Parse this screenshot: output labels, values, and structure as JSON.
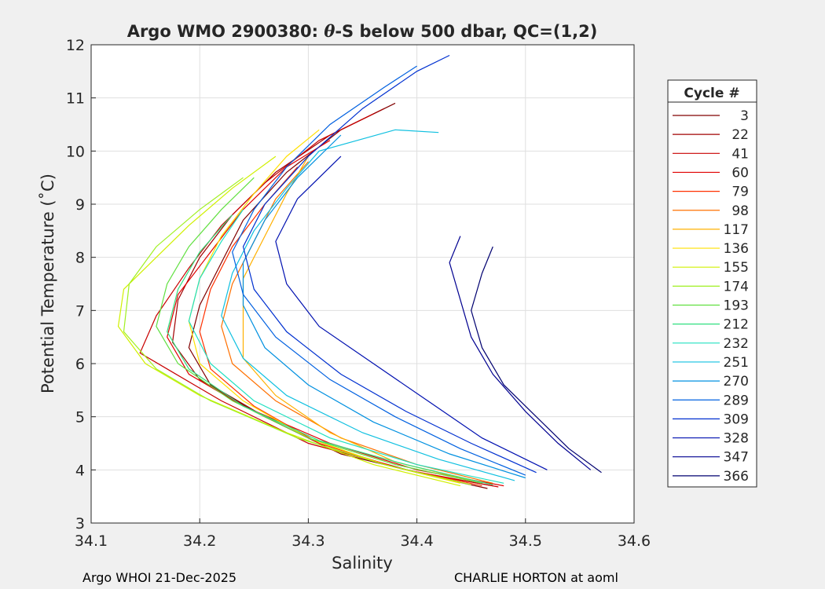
{
  "chart_data": {
    "type": "line",
    "title": "Argo WMO 2900380: θ-S below 500 dbar,  QC=(1,2)",
    "title_parts": {
      "pre": "Argo WMO 2900380: ",
      "theta": "θ",
      "post": "-S below 500 dbar,  QC=(1,2)"
    },
    "xlabel": "Salinity",
    "ylabel": "Potential Temperature (˚C)",
    "xlim": [
      34.1,
      34.6
    ],
    "ylim": [
      3,
      12
    ],
    "xticks": [
      34.1,
      34.2,
      34.3,
      34.4,
      34.5,
      34.6
    ],
    "xtick_labels": [
      "34.1",
      "34.2",
      "34.3",
      "34.4",
      "34.5",
      "34.6"
    ],
    "yticks": [
      3,
      4,
      5,
      6,
      7,
      8,
      9,
      10,
      11,
      12
    ],
    "ytick_labels": [
      "3",
      "4",
      "5",
      "6",
      "7",
      "8",
      "9",
      "10",
      "11",
      "12"
    ],
    "grid": true,
    "legend_title": "Cycle #",
    "legend_position": "right-outside",
    "series": [
      {
        "name": "3",
        "color": "#800000",
        "values": [
          [
            34.465,
            3.65
          ],
          [
            34.41,
            3.9
          ],
          [
            34.33,
            4.3
          ],
          [
            34.26,
            5.0
          ],
          [
            34.21,
            5.6
          ],
          [
            34.19,
            6.3
          ],
          [
            34.2,
            7.1
          ],
          [
            34.22,
            7.9
          ],
          [
            34.24,
            8.7
          ],
          [
            34.28,
            9.6
          ],
          [
            34.33,
            10.4
          ],
          [
            34.38,
            10.9
          ]
        ]
      },
      {
        "name": "22",
        "color": "#a00000",
        "values": [
          [
            34.47,
            3.7
          ],
          [
            34.4,
            3.95
          ],
          [
            34.32,
            4.4
          ],
          [
            34.25,
            5.1
          ],
          [
            34.2,
            5.7
          ],
          [
            34.175,
            6.4
          ],
          [
            34.18,
            7.2
          ],
          [
            34.2,
            8.0
          ],
          [
            34.23,
            8.8
          ],
          [
            34.27,
            9.6
          ],
          [
            34.32,
            10.3
          ],
          [
            34.37,
            10.8
          ]
        ]
      },
      {
        "name": "41",
        "color": "#c80000",
        "values": [
          [
            34.475,
            3.68
          ],
          [
            34.39,
            4.0
          ],
          [
            34.3,
            4.5
          ],
          [
            34.22,
            5.3
          ],
          [
            34.17,
            5.9
          ],
          [
            34.145,
            6.2
          ],
          [
            34.16,
            6.9
          ],
          [
            34.19,
            7.8
          ],
          [
            34.22,
            8.6
          ],
          [
            34.26,
            9.4
          ],
          [
            34.31,
            10.2
          ],
          [
            34.36,
            10.7
          ]
        ]
      },
      {
        "name": "60",
        "color": "#e00000",
        "values": [
          [
            34.48,
            3.7
          ],
          [
            34.4,
            4.0
          ],
          [
            34.32,
            4.5
          ],
          [
            34.24,
            5.2
          ],
          [
            34.19,
            5.8
          ],
          [
            34.17,
            6.5
          ],
          [
            34.18,
            7.3
          ],
          [
            34.21,
            8.1
          ],
          [
            34.24,
            8.9
          ],
          [
            34.28,
            9.7
          ],
          [
            34.32,
            10.2
          ]
        ]
      },
      {
        "name": "79",
        "color": "#ff3000",
        "values": [
          [
            34.46,
            3.7
          ],
          [
            34.38,
            4.05
          ],
          [
            34.31,
            4.5
          ],
          [
            34.25,
            5.2
          ],
          [
            34.21,
            5.9
          ],
          [
            34.2,
            6.6
          ],
          [
            34.21,
            7.4
          ],
          [
            34.23,
            8.2
          ],
          [
            34.26,
            9.0
          ],
          [
            34.29,
            9.7
          ]
        ]
      },
      {
        "name": "98",
        "color": "#ff7000",
        "values": [
          [
            34.47,
            3.75
          ],
          [
            34.4,
            4.1
          ],
          [
            34.33,
            4.6
          ],
          [
            34.27,
            5.3
          ],
          [
            34.23,
            6.0
          ],
          [
            34.22,
            6.7
          ],
          [
            34.23,
            7.5
          ],
          [
            34.25,
            8.3
          ],
          [
            34.27,
            9.1
          ],
          [
            34.3,
            9.8
          ]
        ]
      },
      {
        "name": "117",
        "color": "#ffb000",
        "values": [
          [
            34.45,
            3.8
          ],
          [
            34.38,
            4.15
          ],
          [
            34.32,
            4.7
          ],
          [
            34.27,
            5.4
          ],
          [
            34.24,
            6.1
          ],
          [
            34.24,
            6.8
          ],
          [
            34.24,
            7.6
          ],
          [
            34.26,
            8.4
          ],
          [
            34.28,
            9.2
          ],
          [
            34.3,
            9.9
          ]
        ]
      },
      {
        "name": "136",
        "color": "#ffe000",
        "values": [
          [
            34.44,
            3.75
          ],
          [
            34.37,
            4.1
          ],
          [
            34.3,
            4.6
          ],
          [
            34.24,
            5.3
          ],
          [
            34.2,
            6.0
          ],
          [
            34.19,
            6.8
          ],
          [
            34.2,
            7.6
          ],
          [
            34.22,
            8.4
          ],
          [
            34.25,
            9.2
          ],
          [
            34.28,
            9.9
          ],
          [
            34.31,
            10.4
          ]
        ]
      },
      {
        "name": "155",
        "color": "#d0f000",
        "values": [
          [
            34.44,
            3.7
          ],
          [
            34.36,
            4.1
          ],
          [
            34.28,
            4.7
          ],
          [
            34.2,
            5.4
          ],
          [
            34.15,
            6.0
          ],
          [
            34.125,
            6.7
          ],
          [
            34.13,
            7.4
          ],
          [
            34.16,
            8.0
          ],
          [
            34.19,
            8.6
          ],
          [
            34.23,
            9.3
          ],
          [
            34.27,
            9.9
          ]
        ]
      },
      {
        "name": "174",
        "color": "#a0f020",
        "values": [
          [
            34.45,
            3.72
          ],
          [
            34.37,
            4.1
          ],
          [
            34.29,
            4.6
          ],
          [
            34.21,
            5.3
          ],
          [
            34.16,
            5.9
          ],
          [
            34.13,
            6.6
          ],
          [
            34.135,
            7.5
          ],
          [
            34.16,
            8.2
          ],
          [
            34.2,
            8.9
          ],
          [
            34.24,
            9.5
          ]
        ]
      },
      {
        "name": "193",
        "color": "#60e040",
        "values": [
          [
            34.46,
            3.75
          ],
          [
            34.38,
            4.1
          ],
          [
            34.3,
            4.6
          ],
          [
            34.23,
            5.3
          ],
          [
            34.18,
            6.0
          ],
          [
            34.16,
            6.7
          ],
          [
            34.17,
            7.5
          ],
          [
            34.19,
            8.2
          ],
          [
            34.22,
            8.9
          ],
          [
            34.25,
            9.5
          ]
        ]
      },
      {
        "name": "212",
        "color": "#30e080",
        "values": [
          [
            34.47,
            3.72
          ],
          [
            34.39,
            4.1
          ],
          [
            34.31,
            4.55
          ],
          [
            34.24,
            5.2
          ],
          [
            34.19,
            5.9
          ],
          [
            34.17,
            6.6
          ],
          [
            34.18,
            7.4
          ],
          [
            34.2,
            8.1
          ],
          [
            34.23,
            8.8
          ]
        ]
      },
      {
        "name": "232",
        "color": "#20e0c0",
        "values": [
          [
            34.48,
            3.75
          ],
          [
            34.4,
            4.1
          ],
          [
            34.32,
            4.6
          ],
          [
            34.25,
            5.3
          ],
          [
            34.21,
            6.0
          ],
          [
            34.19,
            6.8
          ],
          [
            34.2,
            7.6
          ],
          [
            34.22,
            8.3
          ],
          [
            34.24,
            8.9
          ]
        ]
      },
      {
        "name": "251",
        "color": "#10c0e0",
        "values": [
          [
            34.49,
            3.8
          ],
          [
            34.42,
            4.2
          ],
          [
            34.35,
            4.7
          ],
          [
            34.28,
            5.4
          ],
          [
            34.24,
            6.1
          ],
          [
            34.22,
            6.9
          ],
          [
            34.23,
            7.7
          ],
          [
            34.25,
            8.5
          ],
          [
            34.28,
            9.3
          ],
          [
            34.31,
            10.0
          ],
          [
            34.38,
            10.4
          ],
          [
            34.42,
            10.35
          ]
        ]
      },
      {
        "name": "270",
        "color": "#0090e0",
        "values": [
          [
            34.5,
            3.85
          ],
          [
            34.43,
            4.3
          ],
          [
            34.36,
            4.9
          ],
          [
            34.3,
            5.6
          ],
          [
            34.26,
            6.3
          ],
          [
            34.24,
            7.1
          ],
          [
            34.24,
            7.9
          ],
          [
            34.26,
            8.7
          ],
          [
            34.29,
            9.5
          ],
          [
            34.33,
            10.3
          ]
        ]
      },
      {
        "name": "289",
        "color": "#0060e0",
        "values": [
          [
            34.5,
            3.9
          ],
          [
            34.44,
            4.4
          ],
          [
            34.38,
            5.0
          ],
          [
            34.32,
            5.7
          ],
          [
            34.27,
            6.5
          ],
          [
            34.24,
            7.3
          ],
          [
            34.23,
            8.1
          ],
          [
            34.25,
            8.9
          ],
          [
            34.28,
            9.7
          ],
          [
            34.32,
            10.5
          ],
          [
            34.37,
            11.2
          ],
          [
            34.4,
            11.6
          ]
        ]
      },
      {
        "name": "309",
        "color": "#0030d0",
        "values": [
          [
            34.51,
            3.95
          ],
          [
            34.45,
            4.5
          ],
          [
            34.39,
            5.1
          ],
          [
            34.33,
            5.8
          ],
          [
            34.28,
            6.6
          ],
          [
            34.25,
            7.4
          ],
          [
            34.24,
            8.2
          ],
          [
            34.26,
            9.0
          ],
          [
            34.3,
            9.9
          ],
          [
            34.35,
            10.8
          ],
          [
            34.4,
            11.5
          ],
          [
            34.43,
            11.8
          ]
        ]
      },
      {
        "name": "328",
        "color": "#0010b0",
        "values": [
          [
            34.52,
            4.0
          ],
          [
            34.46,
            4.6
          ],
          [
            34.41,
            5.3
          ],
          [
            34.36,
            6.0
          ],
          [
            34.31,
            6.7
          ],
          [
            34.28,
            7.5
          ],
          [
            34.27,
            8.3
          ],
          [
            34.29,
            9.1
          ],
          [
            34.33,
            9.9
          ]
        ]
      },
      {
        "name": "347",
        "color": "#000090",
        "values": [
          [
            34.56,
            4.0
          ],
          [
            34.53,
            4.5
          ],
          [
            34.5,
            5.1
          ],
          [
            34.47,
            5.8
          ],
          [
            34.45,
            6.5
          ],
          [
            34.44,
            7.2
          ],
          [
            34.43,
            7.9
          ],
          [
            34.44,
            8.4
          ]
        ]
      },
      {
        "name": "366",
        "color": "#000070",
        "values": [
          [
            34.57,
            3.95
          ],
          [
            34.54,
            4.4
          ],
          [
            34.51,
            5.0
          ],
          [
            34.48,
            5.6
          ],
          [
            34.46,
            6.3
          ],
          [
            34.45,
            7.0
          ],
          [
            34.46,
            7.7
          ],
          [
            34.47,
            8.2
          ]
        ]
      }
    ]
  },
  "footer": {
    "left": "Argo WHOI 21-Dec-2025",
    "right": "CHARLIE HORTON at aoml"
  }
}
